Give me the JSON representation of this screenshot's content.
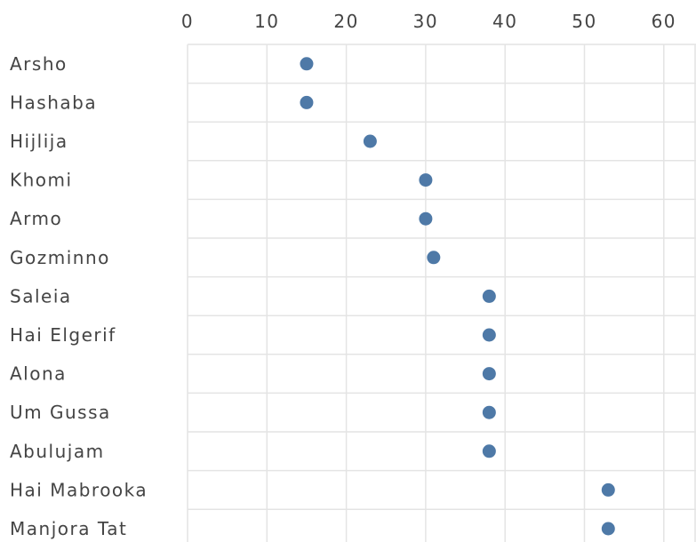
{
  "chart_data": {
    "type": "scatter",
    "title": "",
    "xlabel": "",
    "ylabel": "",
    "x_axis_position": "top",
    "xlim": [
      0,
      65
    ],
    "xticks": [
      0,
      10,
      20,
      30,
      40,
      50,
      60
    ],
    "grid": true,
    "categories": [
      "Arsho",
      "Hashaba",
      "Hijlija",
      "Khomi",
      "Armo",
      "Gozminno",
      "Saleia",
      "Hai Elgerif",
      "Alona",
      "Um Gussa",
      "Abulujam",
      "Hai Mabrooka",
      "Manjora Tat"
    ],
    "values": [
      15,
      15,
      23,
      30,
      30,
      31,
      38,
      38,
      38,
      38,
      38,
      53,
      53
    ],
    "marker_color": "#4e79a7"
  }
}
